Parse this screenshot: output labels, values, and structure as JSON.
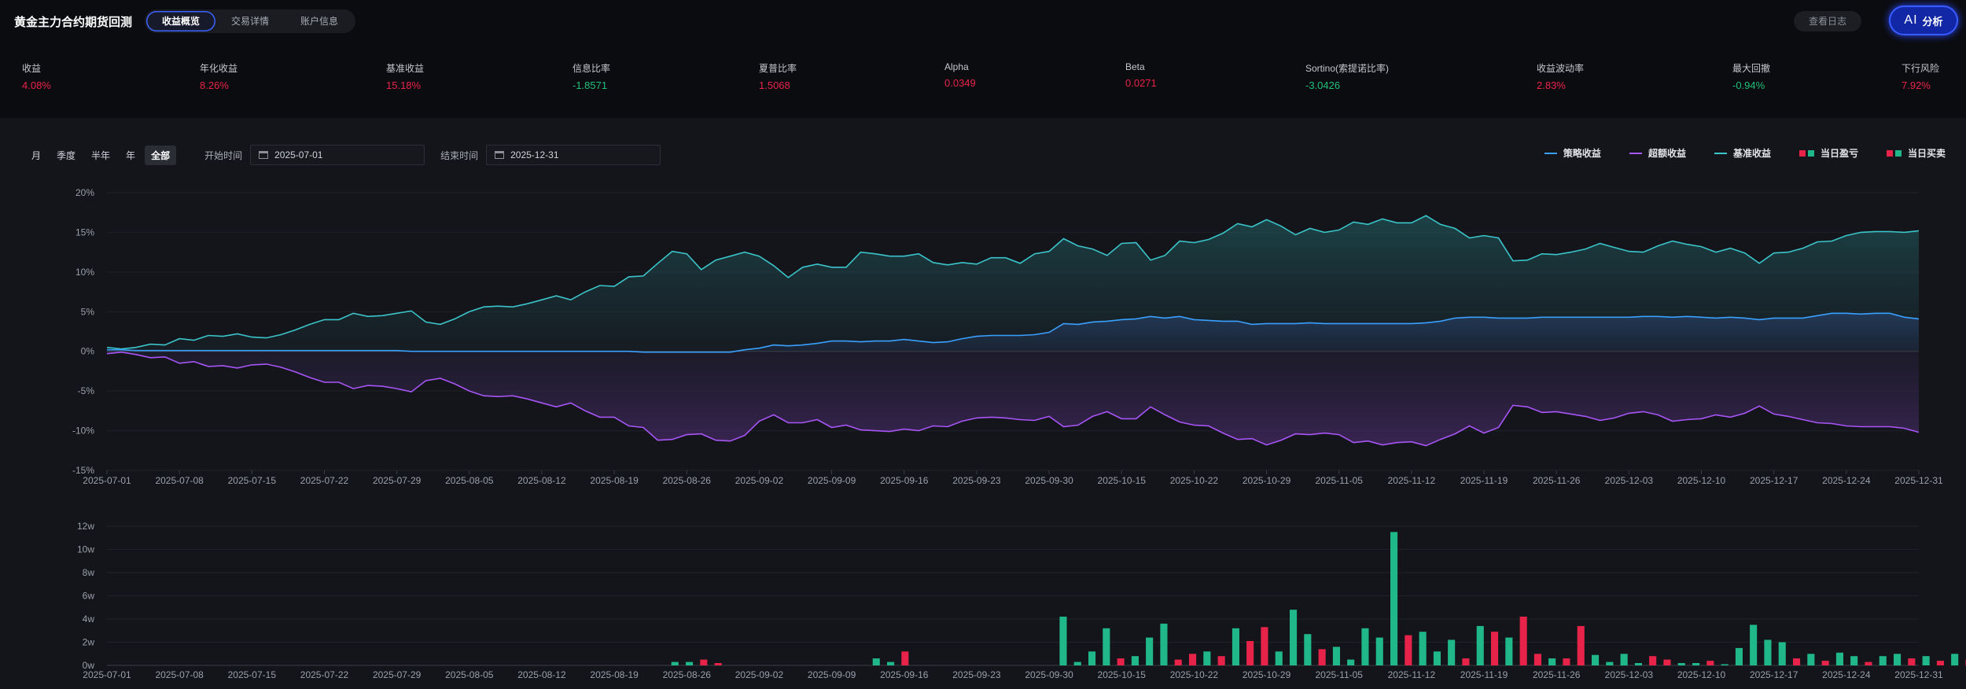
{
  "header": {
    "title": "黄金主力合约期货回测",
    "tabs": [
      {
        "label": "收益概览",
        "active": true
      },
      {
        "label": "交易详情",
        "active": false
      },
      {
        "label": "账户信息",
        "active": false
      }
    ],
    "log_button": "查看日志",
    "ai_button": {
      "mark": "AI",
      "label": "分析"
    }
  },
  "metrics": [
    {
      "label": "收益",
      "value": "4.08%",
      "tone": "pos"
    },
    {
      "label": "年化收益",
      "value": "8.26%",
      "tone": "pos"
    },
    {
      "label": "基准收益",
      "value": "15.18%",
      "tone": "pos"
    },
    {
      "label": "信息比率",
      "value": "-1.8571",
      "tone": "neg"
    },
    {
      "label": "夏普比率",
      "value": "1.5068",
      "tone": "pos"
    },
    {
      "label": "Alpha",
      "value": "0.0349",
      "tone": "pos"
    },
    {
      "label": "Beta",
      "value": "0.0271",
      "tone": "pos"
    },
    {
      "label": "Sortino(索提诺比率)",
      "value": "-3.0426",
      "tone": "neg"
    },
    {
      "label": "收益波动率",
      "value": "2.83%",
      "tone": "pos"
    },
    {
      "label": "最大回撤",
      "value": "-0.94%",
      "tone": "neg"
    },
    {
      "label": "下行风险",
      "value": "7.92%",
      "tone": "pos"
    }
  ],
  "controls": {
    "periods": [
      {
        "label": "月",
        "active": false
      },
      {
        "label": "季度",
        "active": false
      },
      {
        "label": "半年",
        "active": false
      },
      {
        "label": "年",
        "active": false
      },
      {
        "label": "全部",
        "active": true
      }
    ],
    "start_label": "开始时间",
    "start_value": "2025-07-01",
    "end_label": "结束时间",
    "end_value": "2025-12-31"
  },
  "legend": [
    {
      "label": "策略收益",
      "color": "#3aa0ff",
      "kind": "line"
    },
    {
      "label": "超额收益",
      "color": "#a855f7",
      "kind": "line"
    },
    {
      "label": "基准收益",
      "color": "#3bc4c9",
      "kind": "line"
    },
    {
      "label": "当日盈亏",
      "colors": [
        "#e8234a",
        "#21b889"
      ],
      "kind": "bar"
    },
    {
      "label": "当日买卖",
      "colors": [
        "#e8234a",
        "#21b889"
      ],
      "kind": "bar"
    }
  ],
  "chart_data": [
    {
      "type": "line",
      "x_ticks": [
        "2025-07-01",
        "2025-07-08",
        "2025-07-15",
        "2025-07-22",
        "2025-07-29",
        "2025-08-05",
        "2025-08-12",
        "2025-08-19",
        "2025-08-26",
        "2025-09-02",
        "2025-09-09",
        "2025-09-16",
        "2025-09-23",
        "2025-09-30",
        "2025-10-15",
        "2025-10-22",
        "2025-10-29",
        "2025-11-05",
        "2025-11-12",
        "2025-11-19",
        "2025-11-26",
        "2025-12-03",
        "2025-12-10",
        "2025-12-17",
        "2025-12-24",
        "2025-12-31"
      ],
      "y_ticks": [
        "20%",
        "15%",
        "10%",
        "5%",
        "0%",
        "-5%",
        "-10%",
        "-15%"
      ],
      "ylim": [
        -15,
        20
      ],
      "series": [
        {
          "name": "基准收益",
          "color": "#3bc4c9",
          "values": [
            0.5,
            0.3,
            0.5,
            0.9,
            0.8,
            1.6,
            1.4,
            2.0,
            1.9,
            2.2,
            1.8,
            1.7,
            2.1,
            2.7,
            3.4,
            4.0,
            4.0,
            4.8,
            4.4,
            4.5,
            4.8,
            5.1,
            3.7,
            3.4,
            4.1,
            5.0,
            5.6,
            5.7,
            5.6,
            6.0,
            6.5,
            7.0,
            6.5,
            7.5,
            8.3,
            8.2,
            9.4,
            9.5,
            11.1,
            12.6,
            12.3,
            10.3,
            11.5,
            12.0,
            12.5,
            12.0,
            10.8,
            9.3,
            10.6,
            11.0,
            10.6,
            10.6,
            12.5,
            12.3,
            12.0,
            12.0,
            12.3,
            11.2,
            10.9,
            11.2,
            11.0,
            11.8,
            11.8,
            11.1,
            12.3,
            12.6,
            14.2,
            13.3,
            12.9,
            12.1,
            13.6,
            13.7,
            11.5,
            12.1,
            13.9,
            13.7,
            14.1,
            14.9,
            16.1,
            15.7,
            16.6,
            15.8,
            14.7,
            15.5,
            15.0,
            15.3,
            16.3,
            16.0,
            16.7,
            16.2,
            16.2,
            17.1,
            16.0,
            15.5,
            14.3,
            14.6,
            14.3,
            11.4,
            11.5,
            12.3,
            12.2,
            12.5,
            12.9,
            13.6,
            13.1,
            12.6,
            12.5,
            13.3,
            13.9,
            13.5,
            13.2,
            12.5,
            13.0,
            12.4,
            11.1,
            12.4,
            12.5,
            13.0,
            13.8,
            13.9,
            14.6,
            15.0,
            15.1,
            15.1,
            15.0,
            15.2
          ]
        },
        {
          "name": "策略收益",
          "color": "#3aa0ff",
          "values": [
            0.2,
            0.2,
            0.1,
            0.1,
            0.1,
            0.1,
            0.1,
            0.1,
            0.1,
            0.1,
            0.1,
            0.1,
            0.1,
            0.1,
            0.1,
            0.1,
            0.1,
            0.1,
            0.1,
            0.1,
            0.1,
            0.0,
            0.0,
            0.0,
            0.0,
            0.0,
            0.0,
            0.0,
            0.0,
            0.0,
            0.0,
            0.0,
            0.0,
            0.0,
            0.0,
            0.0,
            0.0,
            -0.1,
            -0.1,
            -0.1,
            -0.1,
            -0.1,
            -0.1,
            -0.1,
            0.2,
            0.4,
            0.8,
            0.7,
            0.8,
            1.0,
            1.3,
            1.3,
            1.2,
            1.3,
            1.3,
            1.5,
            1.3,
            1.1,
            1.2,
            1.6,
            1.9,
            2.0,
            2.0,
            2.0,
            2.1,
            2.4,
            3.5,
            3.4,
            3.7,
            3.8,
            4.0,
            4.1,
            4.4,
            4.2,
            4.4,
            4.0,
            3.9,
            3.8,
            3.8,
            3.4,
            3.5,
            3.5,
            3.5,
            3.6,
            3.5,
            3.5,
            3.5,
            3.5,
            3.5,
            3.5,
            3.5,
            3.6,
            3.8,
            4.2,
            4.3,
            4.3,
            4.2,
            4.2,
            4.2,
            4.3,
            4.3,
            4.3,
            4.3,
            4.3,
            4.3,
            4.3,
            4.4,
            4.4,
            4.3,
            4.4,
            4.3,
            4.2,
            4.3,
            4.2,
            4.0,
            4.2,
            4.2,
            4.2,
            4.5,
            4.8,
            4.8,
            4.7,
            4.8,
            4.8,
            4.3,
            4.1
          ]
        },
        {
          "name": "超额收益",
          "color": "#a855f7",
          "values": [
            -0.3,
            -0.1,
            -0.4,
            -0.8,
            -0.7,
            -1.5,
            -1.3,
            -1.9,
            -1.8,
            -2.1,
            -1.7,
            -1.6,
            -2.0,
            -2.6,
            -3.3,
            -3.9,
            -3.9,
            -4.7,
            -4.3,
            -4.4,
            -4.7,
            -5.1,
            -3.7,
            -3.4,
            -4.1,
            -5.0,
            -5.6,
            -5.7,
            -5.6,
            -6.0,
            -6.5,
            -7.0,
            -6.5,
            -7.5,
            -8.3,
            -8.3,
            -9.4,
            -9.6,
            -11.2,
            -11.1,
            -10.5,
            -10.4,
            -11.2,
            -11.3,
            -10.6,
            -8.8,
            -8.0,
            -9.0,
            -9.0,
            -8.6,
            -9.6,
            -9.3,
            -9.9,
            -10.0,
            -10.1,
            -9.8,
            -10.0,
            -9.4,
            -9.5,
            -8.8,
            -8.4,
            -8.3,
            -8.4,
            -8.6,
            -8.7,
            -8.2,
            -9.5,
            -9.3,
            -8.2,
            -7.6,
            -8.5,
            -8.5,
            -7.0,
            -8.0,
            -8.9,
            -9.3,
            -9.4,
            -10.3,
            -11.1,
            -11.0,
            -11.8,
            -11.2,
            -10.4,
            -10.5,
            -10.3,
            -10.5,
            -11.5,
            -11.3,
            -11.8,
            -11.5,
            -11.4,
            -11.9,
            -11.1,
            -10.4,
            -9.4,
            -10.3,
            -9.6,
            -6.8,
            -7.0,
            -7.7,
            -7.6,
            -7.9,
            -8.2,
            -8.7,
            -8.4,
            -7.8,
            -7.6,
            -8.0,
            -8.8,
            -8.6,
            -8.5,
            -8.0,
            -8.3,
            -7.8,
            -6.9,
            -7.9,
            -8.2,
            -8.6,
            -9.0,
            -9.1,
            -9.4,
            -9.5,
            -9.5,
            -9.5,
            -9.7,
            -10.2
          ]
        }
      ]
    },
    {
      "type": "bar",
      "x_ticks": [
        "2025-07-01",
        "2025-07-08",
        "2025-07-15",
        "2025-07-22",
        "2025-07-29",
        "2025-08-05",
        "2025-08-12",
        "2025-08-19",
        "2025-08-26",
        "2025-09-02",
        "2025-09-09",
        "2025-09-16",
        "2025-09-23",
        "2025-09-30",
        "2025-10-15",
        "2025-10-22",
        "2025-10-29",
        "2025-11-05",
        "2025-11-12",
        "2025-11-19",
        "2025-11-26",
        "2025-12-03",
        "2025-12-10",
        "2025-12-17",
        "2025-12-24",
        "2025-12-31"
      ],
      "y_ticks": [
        "12w",
        "10w",
        "8w",
        "6w",
        "4w",
        "2w",
        "0w"
      ],
      "ylim": [
        0,
        12
      ],
      "bars": [
        {
          "i": 39,
          "v": 0.3,
          "c": "g"
        },
        {
          "i": 40,
          "v": 0.3,
          "c": "g"
        },
        {
          "i": 41,
          "v": 0.5,
          "c": "r"
        },
        {
          "i": 42,
          "v": 0.2,
          "c": "r"
        },
        {
          "i": 53,
          "v": 0.6,
          "c": "g"
        },
        {
          "i": 54,
          "v": 0.3,
          "c": "g"
        },
        {
          "i": 55,
          "v": 1.2,
          "c": "r"
        },
        {
          "i": 66,
          "v": 4.2,
          "c": "g"
        },
        {
          "i": 67,
          "v": 0.3,
          "c": "g"
        },
        {
          "i": 68,
          "v": 1.2,
          "c": "g"
        },
        {
          "i": 69,
          "v": 3.2,
          "c": "g"
        },
        {
          "i": 70,
          "v": 0.6,
          "c": "r"
        },
        {
          "i": 71,
          "v": 0.8,
          "c": "g"
        },
        {
          "i": 72,
          "v": 2.4,
          "c": "g"
        },
        {
          "i": 73,
          "v": 3.6,
          "c": "g"
        },
        {
          "i": 74,
          "v": 0.5,
          "c": "r"
        },
        {
          "i": 75,
          "v": 1.0,
          "c": "r"
        },
        {
          "i": 76,
          "v": 1.2,
          "c": "g"
        },
        {
          "i": 77,
          "v": 0.8,
          "c": "r"
        },
        {
          "i": 78,
          "v": 3.2,
          "c": "g"
        },
        {
          "i": 79,
          "v": 2.1,
          "c": "r"
        },
        {
          "i": 80,
          "v": 3.3,
          "c": "r"
        },
        {
          "i": 81,
          "v": 1.2,
          "c": "g"
        },
        {
          "i": 82,
          "v": 4.8,
          "c": "g"
        },
        {
          "i": 83,
          "v": 2.7,
          "c": "g"
        },
        {
          "i": 84,
          "v": 1.4,
          "c": "r"
        },
        {
          "i": 85,
          "v": 1.6,
          "c": "g"
        },
        {
          "i": 86,
          "v": 0.5,
          "c": "g"
        },
        {
          "i": 87,
          "v": 3.2,
          "c": "g"
        },
        {
          "i": 88,
          "v": 2.4,
          "c": "g"
        },
        {
          "i": 89,
          "v": 11.5,
          "c": "g"
        },
        {
          "i": 90,
          "v": 2.6,
          "c": "r"
        },
        {
          "i": 91,
          "v": 2.9,
          "c": "g"
        },
        {
          "i": 92,
          "v": 1.2,
          "c": "g"
        },
        {
          "i": 93,
          "v": 2.2,
          "c": "g"
        },
        {
          "i": 94,
          "v": 0.6,
          "c": "r"
        },
        {
          "i": 95,
          "v": 3.4,
          "c": "g"
        },
        {
          "i": 96,
          "v": 2.9,
          "c": "r"
        },
        {
          "i": 97,
          "v": 2.4,
          "c": "g"
        },
        {
          "i": 98,
          "v": 4.2,
          "c": "r"
        },
        {
          "i": 99,
          "v": 1.0,
          "c": "r"
        },
        {
          "i": 100,
          "v": 0.6,
          "c": "g"
        },
        {
          "i": 101,
          "v": 0.6,
          "c": "r"
        },
        {
          "i": 102,
          "v": 3.4,
          "c": "r"
        },
        {
          "i": 103,
          "v": 0.9,
          "c": "g"
        },
        {
          "i": 104,
          "v": 0.3,
          "c": "g"
        },
        {
          "i": 105,
          "v": 1.0,
          "c": "g"
        },
        {
          "i": 106,
          "v": 0.2,
          "c": "g"
        },
        {
          "i": 107,
          "v": 0.8,
          "c": "r"
        },
        {
          "i": 108,
          "v": 0.5,
          "c": "r"
        },
        {
          "i": 109,
          "v": 0.2,
          "c": "g"
        },
        {
          "i": 110,
          "v": 0.2,
          "c": "g"
        },
        {
          "i": 111,
          "v": 0.4,
          "c": "r"
        },
        {
          "i": 112,
          "v": 0.1,
          "c": "g"
        },
        {
          "i": 113,
          "v": 1.5,
          "c": "g"
        },
        {
          "i": 114,
          "v": 3.5,
          "c": "g"
        },
        {
          "i": 115,
          "v": 2.2,
          "c": "g"
        },
        {
          "i": 116,
          "v": 2.0,
          "c": "g"
        },
        {
          "i": 117,
          "v": 0.6,
          "c": "r"
        },
        {
          "i": 118,
          "v": 1.0,
          "c": "g"
        },
        {
          "i": 119,
          "v": 0.4,
          "c": "r"
        },
        {
          "i": 120,
          "v": 1.1,
          "c": "g"
        },
        {
          "i": 121,
          "v": 0.8,
          "c": "g"
        },
        {
          "i": 122,
          "v": 0.3,
          "c": "r"
        },
        {
          "i": 123,
          "v": 0.8,
          "c": "g"
        },
        {
          "i": 124,
          "v": 1.0,
          "c": "g"
        },
        {
          "i": 125,
          "v": 0.6,
          "c": "r"
        },
        {
          "i": 126,
          "v": 0.8,
          "c": "g"
        },
        {
          "i": 127,
          "v": 0.4,
          "c": "r"
        },
        {
          "i": 128,
          "v": 1.0,
          "c": "g"
        },
        {
          "i": 129,
          "v": 0.5,
          "c": "r"
        },
        {
          "i": 130,
          "v": 0.8,
          "c": "g"
        },
        {
          "i": 131,
          "v": 0.4,
          "c": "r"
        },
        {
          "i": 132,
          "v": 1.2,
          "c": "r"
        },
        {
          "i": 133,
          "v": 0.6,
          "c": "g"
        },
        {
          "i": 134,
          "v": 2.4,
          "c": "r"
        },
        {
          "i": 135,
          "v": 2.4,
          "c": "g"
        },
        {
          "i": 136,
          "v": 0.3,
          "c": "g"
        },
        {
          "i": 137,
          "v": 0.4,
          "c": "r"
        },
        {
          "i": 138,
          "v": 4.3,
          "c": "g"
        },
        {
          "i": 139,
          "v": 2.7,
          "c": "g"
        },
        {
          "i": 140,
          "v": 0.7,
          "c": "r"
        },
        {
          "i": 141,
          "v": 1.3,
          "c": "g"
        },
        {
          "i": 142,
          "v": 1.7,
          "c": "r"
        },
        {
          "i": 143,
          "v": 4.5,
          "c": "r"
        },
        {
          "i": 144,
          "v": 1.5,
          "c": "r"
        }
      ]
    }
  ]
}
